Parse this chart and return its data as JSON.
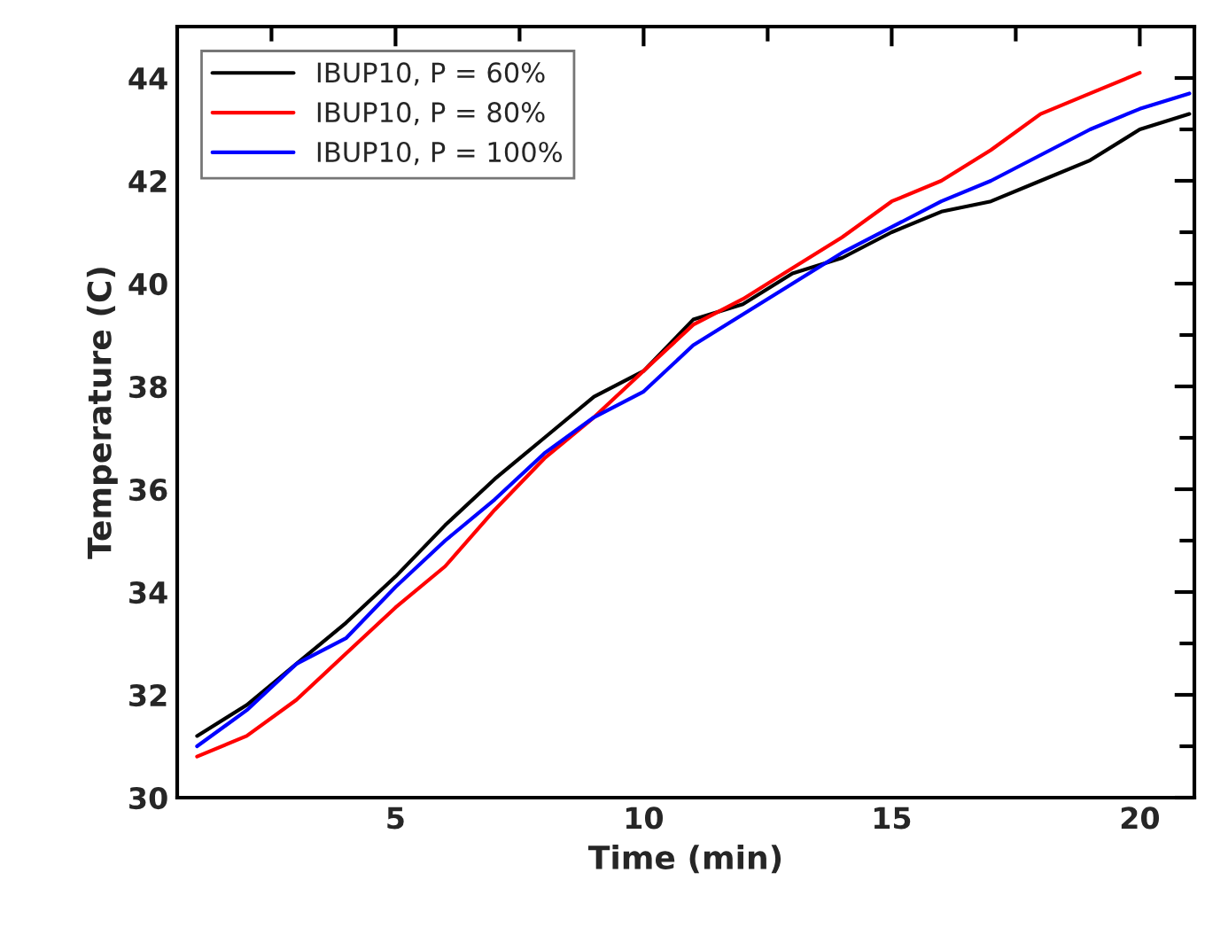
{
  "chart_data": {
    "type": "line",
    "xlabel": "Time (min)",
    "ylabel": "Temperature (C)",
    "x": [
      1,
      2,
      3,
      4,
      5,
      6,
      7,
      8,
      9,
      10,
      11,
      12,
      13,
      14,
      15,
      16,
      17,
      18,
      19,
      20,
      21
    ],
    "series": [
      {
        "name": "IBUP10, P = 60%",
        "color": "#000000",
        "values": [
          31.2,
          31.8,
          32.6,
          33.4,
          34.3,
          35.3,
          36.2,
          37.0,
          37.8,
          38.3,
          39.3,
          39.6,
          40.2,
          40.5,
          41.0,
          41.4,
          41.6,
          42.0,
          42.4,
          43.0,
          43.3
        ]
      },
      {
        "name": "IBUP10, P = 80%",
        "color": "#ff0000",
        "values": [
          30.8,
          31.2,
          31.9,
          32.8,
          33.7,
          34.5,
          35.6,
          36.6,
          37.4,
          38.3,
          39.2,
          39.7,
          40.3,
          40.9,
          41.6,
          42.0,
          42.6,
          43.3,
          43.7,
          44.1,
          null
        ]
      },
      {
        "name": "IBUP10, P = 100%",
        "color": "#0000ff",
        "values": [
          31.0,
          31.7,
          32.6,
          33.1,
          34.1,
          35.0,
          35.8,
          36.7,
          37.4,
          37.9,
          38.8,
          39.4,
          40.0,
          40.6,
          41.1,
          41.6,
          42.0,
          42.5,
          43.0,
          43.4,
          43.7
        ]
      }
    ],
    "xlim": [
      0.6,
      21.1
    ],
    "ylim": [
      30,
      45
    ],
    "xticks": [
      {
        "value": 2.5,
        "label": null
      },
      5,
      {
        "value": 7.5,
        "label": null
      },
      10,
      {
        "value": 12.5,
        "label": null
      },
      15,
      {
        "value": 17.5,
        "label": null
      },
      20
    ],
    "yticks": [
      30,
      {
        "value": 31,
        "label": null
      },
      32,
      {
        "value": 33,
        "label": null
      },
      34,
      {
        "value": 35,
        "label": null
      },
      36,
      {
        "value": 37,
        "label": null
      },
      38,
      {
        "value": 39,
        "label": null
      },
      40,
      {
        "value": 41,
        "label": null
      },
      42,
      {
        "value": 43,
        "label": null
      },
      44
    ],
    "legend": "top left",
    "grid": false,
    "marker": "none",
    "line_style": "solid"
  }
}
